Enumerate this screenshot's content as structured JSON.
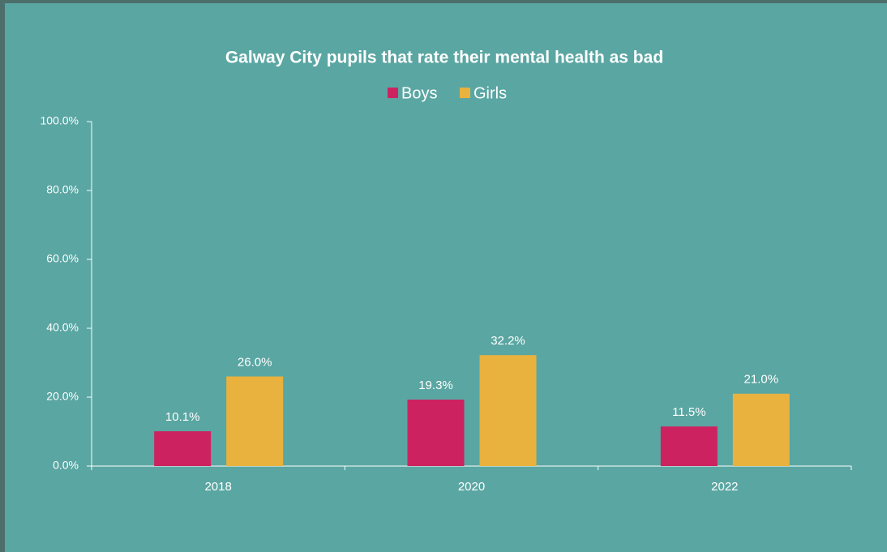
{
  "chart_data": {
    "type": "bar",
    "title": "Galway City pupils that rate their mental health as bad",
    "categories": [
      "2018",
      "2020",
      "2022"
    ],
    "series": [
      {
        "name": "Boys",
        "color": "#cc2360",
        "values": [
          10.1,
          19.3,
          11.5
        ],
        "value_labels": [
          "10.1%",
          "19.3%",
          "11.5%"
        ]
      },
      {
        "name": "Girls",
        "color": "#e9b23e",
        "values": [
          26.0,
          32.2,
          21.0
        ],
        "value_labels": [
          "26.0%",
          "32.2%",
          "21.0%"
        ]
      }
    ],
    "ylim": [
      0,
      100
    ],
    "yticks": [
      {
        "value": 0,
        "label": "0.0%"
      },
      {
        "value": 20,
        "label": "20.0%"
      },
      {
        "value": 40,
        "label": "40.0%"
      },
      {
        "value": 60,
        "label": "60.0%"
      },
      {
        "value": 80,
        "label": "80.0%"
      },
      {
        "value": 100,
        "label": "100.0%"
      }
    ],
    "grid": false,
    "legend": "top"
  }
}
